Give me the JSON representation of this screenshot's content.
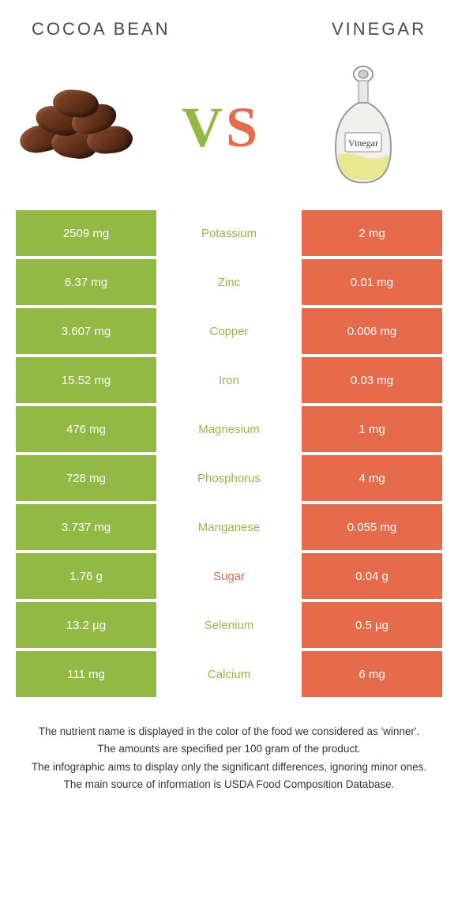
{
  "header": {
    "left_title": "COCOA BEAN",
    "right_title": "VINEGAR"
  },
  "vs": {
    "v": "V",
    "s": "S"
  },
  "colors": {
    "left_bg": "#93b945",
    "right_bg": "#e56b4b",
    "nutrient_left": "#93b945",
    "nutrient_right": "#e56b4b",
    "row_gap": "#ffffff"
  },
  "table": {
    "rows": [
      {
        "left": "2509 mg",
        "nutrient": "Potassium",
        "right": "2 mg",
        "winner": "left"
      },
      {
        "left": "6.37 mg",
        "nutrient": "Zinc",
        "right": "0.01 mg",
        "winner": "left"
      },
      {
        "left": "3.607 mg",
        "nutrient": "Copper",
        "right": "0.006 mg",
        "winner": "left"
      },
      {
        "left": "15.52 mg",
        "nutrient": "Iron",
        "right": "0.03 mg",
        "winner": "left"
      },
      {
        "left": "476 mg",
        "nutrient": "Magnesium",
        "right": "1 mg",
        "winner": "left"
      },
      {
        "left": "728 mg",
        "nutrient": "Phosphorus",
        "right": "4 mg",
        "winner": "left"
      },
      {
        "left": "3.737 mg",
        "nutrient": "Manganese",
        "right": "0.055 mg",
        "winner": "left"
      },
      {
        "left": "1.76 g",
        "nutrient": "Sugar",
        "right": "0.04 g",
        "winner": "right"
      },
      {
        "left": "13.2 µg",
        "nutrient": "Selenium",
        "right": "0.5 µg",
        "winner": "left"
      },
      {
        "left": "111 mg",
        "nutrient": "Calcium",
        "right": "6 mg",
        "winner": "left"
      }
    ]
  },
  "illustrations": {
    "vinegar_label": "Vinegar"
  },
  "footer": {
    "line1": "The nutrient name is displayed in the color of the food we considered as 'winner'.",
    "line2": "The amounts are specified per 100 gram of the product.",
    "line3": "The infographic aims to display only the significant differences, ignoring minor ones.",
    "line4": "The main source of information is USDA Food Composition Database."
  }
}
